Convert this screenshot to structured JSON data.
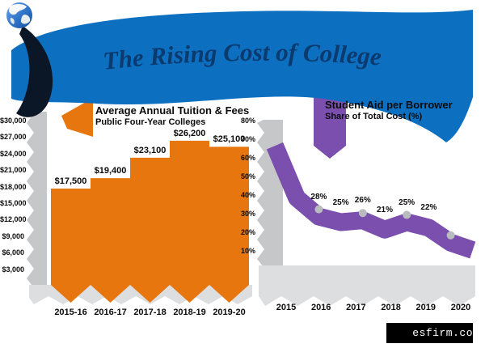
{
  "banner": {
    "title": "The Rising Cost of College",
    "bg_color": "#0d6fc0",
    "text_color": "#0a3a6e"
  },
  "logo": {
    "icon": "globe-icon"
  },
  "watermark": {
    "text": "esfirm.co"
  },
  "chart_data": [
    {
      "type": "bar",
      "title": "Average Annual Tuition & Fees",
      "subtitle": "Public Four-Year Colleges",
      "categories": [
        "2015-16",
        "2016-17",
        "2017-18",
        "2018-19",
        "2019-20"
      ],
      "values": [
        17500,
        19400,
        23100,
        26200,
        25100
      ],
      "value_labels": [
        "$17,500",
        "$19,400",
        "$23,100",
        "$26,200",
        "$25,100"
      ],
      "y_ticks": [
        "$30,000",
        "$27,000",
        "$24,000",
        "$21,000",
        "$18,000",
        "$15,000",
        "$12,000",
        "$9,000",
        "$6,000",
        "$3,000"
      ],
      "ylim": [
        0,
        30000
      ],
      "bar_color": "#e8760e",
      "axis_color": "#c5c7c9",
      "legend": "off",
      "grid": "off"
    },
    {
      "type": "line",
      "title": "Student Aid per Borrower",
      "subtitle": "Share of Total Cost (%)",
      "categories": [
        "2015",
        "2016",
        "2017",
        "2018",
        "2019",
        "2020"
      ],
      "values": [
        66,
        38,
        28,
        25,
        26,
        21,
        25,
        22,
        14,
        10
      ],
      "point_labels": [
        "28%",
        "25%",
        "26%",
        "21%",
        "25%",
        "22%"
      ],
      "point_label_start_index": 2,
      "marker_indices": [
        2,
        4,
        6,
        8
      ],
      "y_ticks": [
        "80%",
        "70%",
        "60%",
        "50%",
        "40%",
        "30%",
        "20%",
        "10%"
      ],
      "ylim": [
        0,
        80
      ],
      "line_color": "#7b4fad",
      "marker_color": "#b9bcbf",
      "axis_color": "#c5c7c9",
      "legend": "off",
      "grid": "off"
    }
  ]
}
